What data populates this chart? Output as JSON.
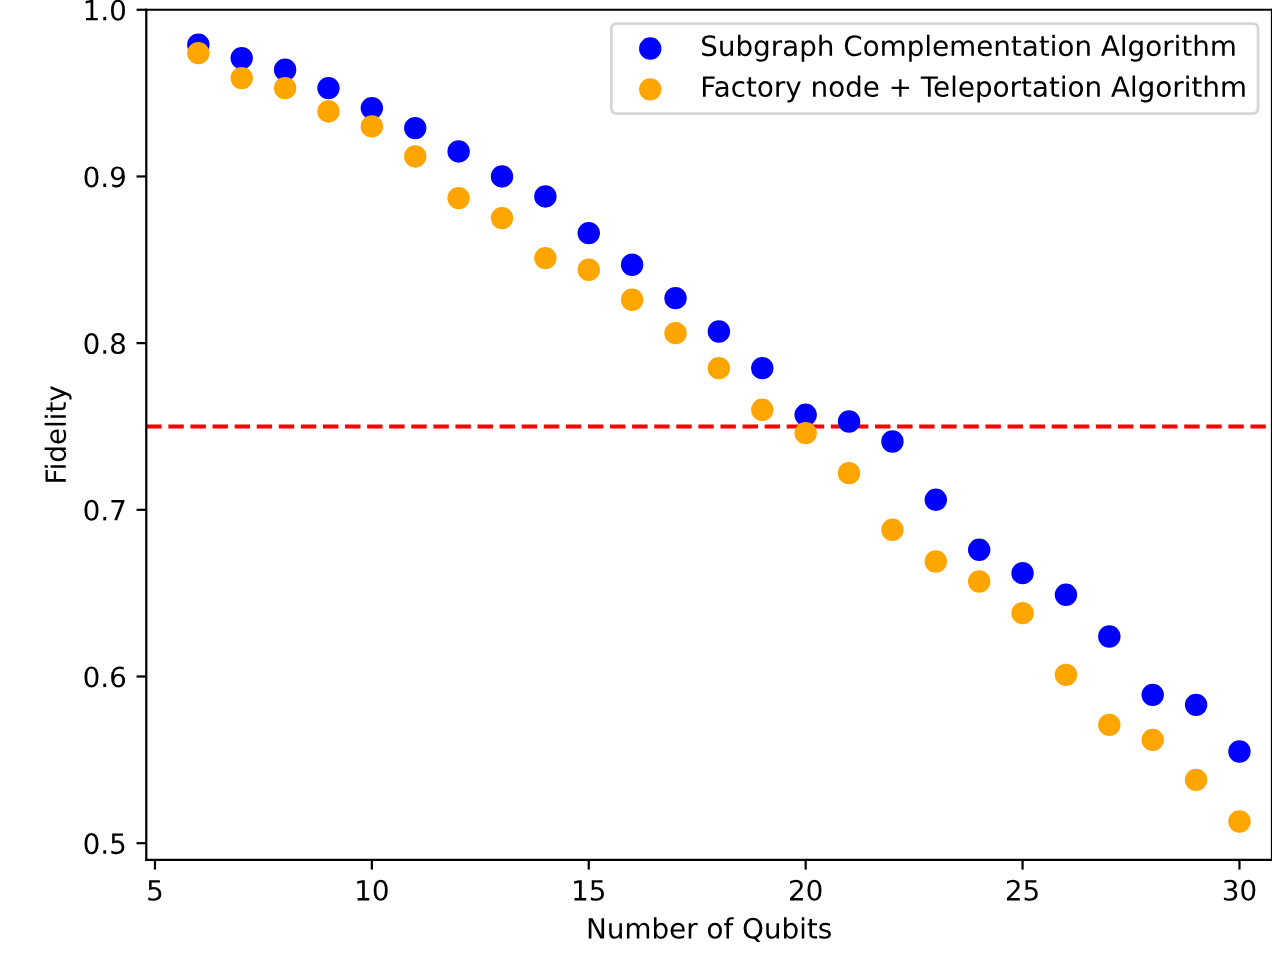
{
  "chart_data": {
    "type": "scatter",
    "xlabel": "Number of Qubits",
    "ylabel": "Fidelity",
    "x": [
      6,
      7,
      8,
      9,
      10,
      11,
      12,
      13,
      14,
      15,
      16,
      17,
      18,
      19,
      20,
      21,
      22,
      23,
      24,
      25,
      26,
      27,
      28,
      29,
      30
    ],
    "series": [
      {
        "name": "Subgraph Complementation Algorithm",
        "color": "#0000ff",
        "values": [
          0.979,
          0.971,
          0.964,
          0.953,
          0.941,
          0.929,
          0.915,
          0.9,
          0.888,
          0.866,
          0.847,
          0.827,
          0.807,
          0.785,
          0.757,
          0.753,
          0.741,
          0.706,
          0.676,
          0.662,
          0.649,
          0.624,
          0.589,
          0.583,
          0.555
        ]
      },
      {
        "name": "Factory node + Teleportation Algorithm",
        "color": "#ffa500",
        "values": [
          0.974,
          0.959,
          0.953,
          0.939,
          0.93,
          0.912,
          0.887,
          0.875,
          0.851,
          0.844,
          0.826,
          0.806,
          0.785,
          0.76,
          0.746,
          0.722,
          0.688,
          0.669,
          0.657,
          0.638,
          0.601,
          0.571,
          0.562,
          0.538,
          0.513
        ]
      }
    ],
    "xlim": [
      4.8,
      30.75
    ],
    "ylim": [
      0.49,
      1.0
    ],
    "xticks": [
      5,
      10,
      15,
      20,
      25,
      30
    ],
    "yticks": [
      0.5,
      0.6,
      0.7,
      0.8,
      0.9,
      {
        "value": 1.0,
        "label": "1.0"
      }
    ],
    "ref_lines": [
      {
        "axis": "y",
        "value": 0.75,
        "color": "#ff0000",
        "line_style": "dashed"
      }
    ],
    "legend": "top right",
    "marker": "circle",
    "grid": false
  }
}
